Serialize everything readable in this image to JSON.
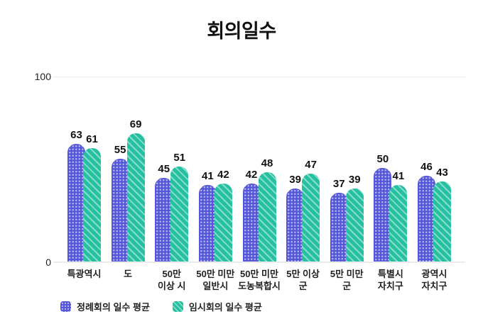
{
  "title": "회의일수",
  "y_axis": {
    "max_label": "100",
    "min_label": "0"
  },
  "legend": [
    {
      "label": "정례회의 일수 평균",
      "series": "regular",
      "color": "#5457d8",
      "pattern": "dots"
    },
    {
      "label": "임시회의 일수 평균",
      "series": "temporary",
      "color": "#25c0a0",
      "pattern": "diagonal-stripes"
    }
  ],
  "chart_data": {
    "type": "bar",
    "title": "회의일수",
    "categories": [
      "특광역시",
      "도",
      "50만 이상 시",
      "50만 미만 일반시",
      "50만 미만 도농복합시",
      "5만 이상 군",
      "5만 미만 군",
      "특별시 자치구",
      "광역시 자치구"
    ],
    "categories_wrapped": [
      [
        "특광역시"
      ],
      [
        "도"
      ],
      [
        "50만",
        "이상 시"
      ],
      [
        "50만 미만",
        "일반시"
      ],
      [
        "50만 미만",
        "도농복합시"
      ],
      [
        "5만 이상",
        "군"
      ],
      [
        "5만 미만",
        "군"
      ],
      [
        "특별시",
        "자치구"
      ],
      [
        "광역시",
        "자치구"
      ]
    ],
    "series": [
      {
        "name": "정례회의 일수 평균",
        "key": "regular",
        "color": "#5457d8",
        "values": [
          63,
          55,
          45,
          41,
          42,
          39,
          37,
          50,
          46
        ]
      },
      {
        "name": "임시회의 일수 평균",
        "key": "temporary",
        "color": "#25c0a0",
        "values": [
          61,
          69,
          51,
          42,
          48,
          47,
          39,
          41,
          43
        ]
      }
    ],
    "xlabel": "",
    "ylabel": "",
    "ylim": [
      0,
      100
    ],
    "grid": "top-gridline-and-baseline-only",
    "legend_position": "bottom-left",
    "bar_style": "rounded-top-patterned"
  }
}
